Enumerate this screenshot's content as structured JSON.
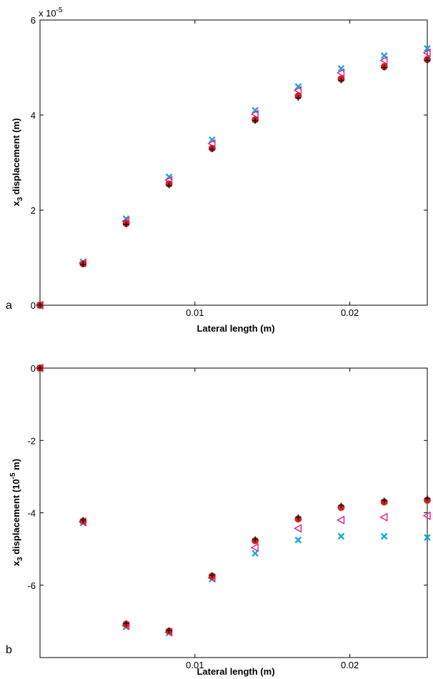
{
  "colors": {
    "black_plus": "#1a1a1a",
    "red_circle": "#d92020",
    "magenta_triangle": "#e0208a",
    "cyan_x": "#1aa8dc"
  },
  "chart_data": [
    {
      "type": "scatter",
      "panel_letter": "a",
      "xlabel": "Lateral length (m)",
      "ylabel_main": "x",
      "ylabel_sub": "3",
      "ylabel_rest": " displacement (m)",
      "exponent_base": "x 10",
      "exponent_power": "-5",
      "xlim": [
        0,
        0.025
      ],
      "ylim": [
        0,
        6
      ],
      "xticks": [
        0.01,
        0.02
      ],
      "xtick_labels": [
        "0.01",
        "0.02"
      ],
      "yticks": [
        0,
        2,
        4,
        6
      ],
      "ytick_labels": [
        "0",
        "2",
        "4",
        "6"
      ],
      "x": [
        0,
        0.00278,
        0.00556,
        0.00833,
        0.01111,
        0.01389,
        0.01667,
        0.01944,
        0.02222,
        0.025
      ],
      "series": [
        {
          "marker": "plus",
          "color": "#1a1a1a",
          "values": [
            0,
            0.86,
            1.7,
            2.52,
            3.28,
            3.88,
            4.36,
            4.73,
            5.0,
            5.15
          ]
        },
        {
          "marker": "circle",
          "color": "#d92020",
          "values": [
            0,
            0.87,
            1.72,
            2.55,
            3.3,
            3.9,
            4.4,
            4.76,
            5.02,
            5.17
          ]
        },
        {
          "marker": "triangle-left",
          "color": "#e0208a",
          "values": [
            0,
            0.89,
            1.77,
            2.63,
            3.4,
            4.02,
            4.52,
            4.89,
            5.15,
            5.31
          ]
        },
        {
          "marker": "x",
          "color": "#1aa8dc",
          "values": [
            0,
            0.91,
            1.82,
            2.7,
            3.48,
            4.1,
            4.6,
            4.98,
            5.25,
            5.4
          ]
        }
      ]
    },
    {
      "type": "scatter",
      "panel_letter": "b",
      "xlabel": "Lateral length (m)",
      "ylabel_main": "x",
      "ylabel_sub": "3",
      "ylabel_mid": " displacement (10",
      "ylabel_sup": "-5",
      "ylabel_end": " m)",
      "xlim": [
        0,
        0.025
      ],
      "ylim": [
        -8,
        0
      ],
      "xticks": [
        0.01,
        0.02
      ],
      "xtick_labels": [
        "0.01",
        "0.02"
      ],
      "yticks": [
        0,
        -2,
        -4,
        -6
      ],
      "ytick_labels": [
        "0",
        "-2",
        "-4",
        "-6"
      ],
      "x": [
        0,
        0.00278,
        0.00556,
        0.00833,
        0.01111,
        0.01389,
        0.01667,
        0.01944,
        0.02222,
        0.025
      ],
      "series": [
        {
          "marker": "plus",
          "color": "#1a1a1a",
          "values": [
            0,
            -4.2,
            -7.05,
            -7.25,
            -5.72,
            -4.73,
            -4.12,
            -3.8,
            -3.66,
            -3.6
          ]
        },
        {
          "marker": "circle",
          "color": "#d92020",
          "values": [
            0,
            -4.23,
            -7.08,
            -7.27,
            -5.75,
            -4.77,
            -4.17,
            -3.85,
            -3.7,
            -3.65
          ]
        },
        {
          "marker": "triangle-left",
          "color": "#e0208a",
          "values": [
            0,
            -4.25,
            -7.12,
            -7.3,
            -5.8,
            -4.96,
            -4.43,
            -4.2,
            -4.12,
            -4.08
          ]
        },
        {
          "marker": "x",
          "color": "#1aa8dc",
          "values": [
            0,
            -4.28,
            -7.15,
            -7.32,
            -5.83,
            -5.12,
            -4.75,
            -4.65,
            -4.65,
            -4.68
          ]
        }
      ]
    }
  ]
}
